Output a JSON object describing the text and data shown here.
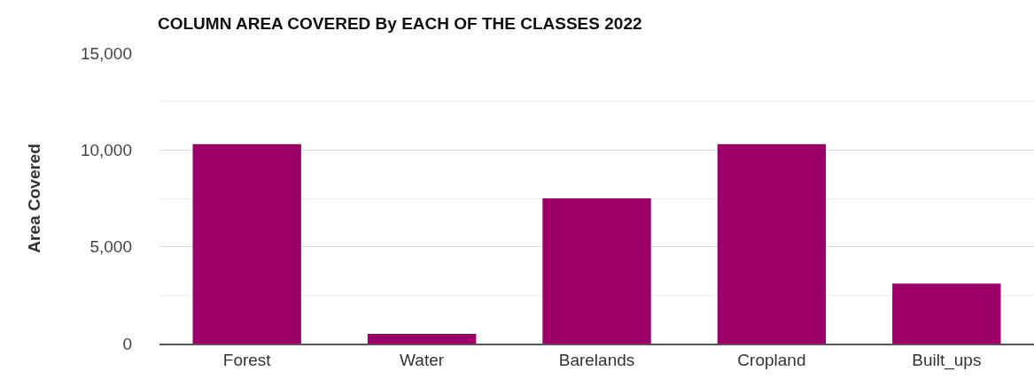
{
  "chart_data": {
    "type": "bar",
    "title": "COLUMN AREA COVERED By EACH OF THE CLASSES 2022",
    "ylabel": "Area Covered",
    "categories": [
      "Forest",
      "Water",
      "Barelands",
      "Cropland",
      "Built_ups"
    ],
    "values": [
      10300,
      500,
      7500,
      10300,
      3100
    ],
    "color": "#9c0068",
    "ylim": [
      0,
      15000
    ],
    "yticks": [
      {
        "value": 0,
        "label": "0"
      },
      {
        "value": 5000,
        "label": "5,000"
      },
      {
        "value": 10000,
        "label": "10,000"
      },
      {
        "value": 15000,
        "label": "15,000"
      }
    ],
    "grid": "y"
  }
}
